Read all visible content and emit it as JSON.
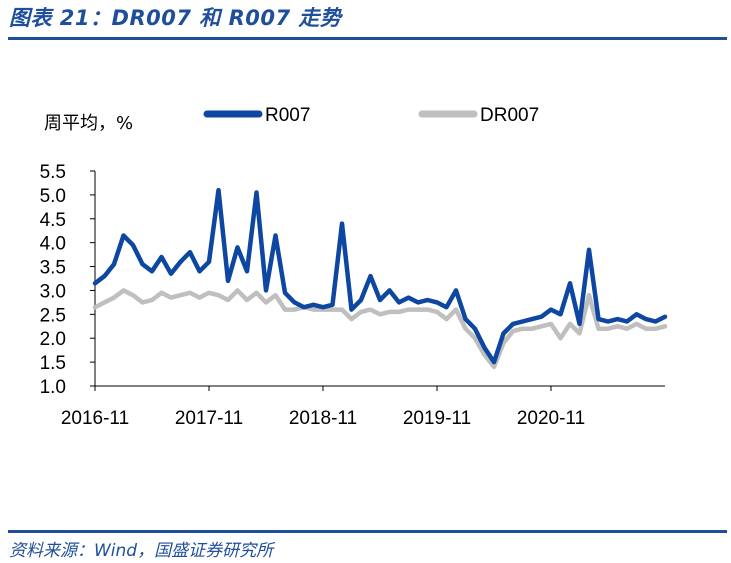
{
  "figure": {
    "title": "图表 21：DR007 和 R007 走势",
    "source": "资料来源：Wind，国盛证券研究所"
  },
  "colors": {
    "r007": "#0d47a1",
    "dr007": "#bfbfbf",
    "accent": "#1f4f9c"
  },
  "chart_data": {
    "type": "line",
    "ylabel": "周平均，%",
    "ylim": [
      1.0,
      5.5
    ],
    "yticks": [
      "1.0",
      "1.5",
      "2.0",
      "2.5",
      "3.0",
      "3.5",
      "4.0",
      "4.5",
      "5.0",
      "5.5"
    ],
    "xlim": [
      "2016-11",
      "2021-11"
    ],
    "xticks": [
      "2016-11",
      "2017-11",
      "2018-11",
      "2019-11",
      "2020-11"
    ],
    "grid": false,
    "legend_position": "top",
    "series": [
      {
        "name": "R007",
        "color": "#0d47a1",
        "points": [
          [
            "2016-11",
            3.15
          ],
          [
            "2016-12",
            3.3
          ],
          [
            "2017-01",
            3.55
          ],
          [
            "2017-02",
            4.15
          ],
          [
            "2017-03",
            3.95
          ],
          [
            "2017-04",
            3.55
          ],
          [
            "2017-05",
            3.4
          ],
          [
            "2017-06",
            3.7
          ],
          [
            "2017-07",
            3.35
          ],
          [
            "2017-08",
            3.6
          ],
          [
            "2017-09",
            3.8
          ],
          [
            "2017-10",
            3.4
          ],
          [
            "2017-11",
            3.6
          ],
          [
            "2017-12",
            5.1
          ],
          [
            "2018-01",
            3.2
          ],
          [
            "2018-02",
            3.9
          ],
          [
            "2018-03",
            3.4
          ],
          [
            "2018-04",
            5.05
          ],
          [
            "2018-05",
            3.0
          ],
          [
            "2018-06",
            4.15
          ],
          [
            "2018-07",
            2.95
          ],
          [
            "2018-08",
            2.75
          ],
          [
            "2018-09",
            2.65
          ],
          [
            "2018-10",
            2.7
          ],
          [
            "2018-11",
            2.65
          ],
          [
            "2018-12",
            2.7
          ],
          [
            "2019-01",
            4.4
          ],
          [
            "2019-02",
            2.6
          ],
          [
            "2019-03",
            2.8
          ],
          [
            "2019-04",
            3.3
          ],
          [
            "2019-05",
            2.8
          ],
          [
            "2019-06",
            3.0
          ],
          [
            "2019-07",
            2.75
          ],
          [
            "2019-08",
            2.85
          ],
          [
            "2019-09",
            2.75
          ],
          [
            "2019-10",
            2.8
          ],
          [
            "2019-11",
            2.75
          ],
          [
            "2019-12",
            2.65
          ],
          [
            "2020-01",
            3.0
          ],
          [
            "2020-02",
            2.4
          ],
          [
            "2020-03",
            2.2
          ],
          [
            "2020-04",
            1.8
          ],
          [
            "2020-05",
            1.5
          ],
          [
            "2020-06",
            2.1
          ],
          [
            "2020-07",
            2.3
          ],
          [
            "2020-08",
            2.35
          ],
          [
            "2020-09",
            2.4
          ],
          [
            "2020-10",
            2.45
          ],
          [
            "2020-11",
            2.6
          ],
          [
            "2020-12",
            2.5
          ],
          [
            "2021-01",
            3.15
          ],
          [
            "2021-02",
            2.3
          ],
          [
            "2021-03",
            3.85
          ],
          [
            "2021-04",
            2.4
          ],
          [
            "2021-05",
            2.35
          ],
          [
            "2021-06",
            2.4
          ],
          [
            "2021-07",
            2.35
          ],
          [
            "2021-08",
            2.5
          ],
          [
            "2021-09",
            2.4
          ],
          [
            "2021-10",
            2.35
          ],
          [
            "2021-11",
            2.45
          ]
        ]
      },
      {
        "name": "DR007",
        "color": "#bfbfbf",
        "points": [
          [
            "2016-11",
            2.65
          ],
          [
            "2016-12",
            2.75
          ],
          [
            "2017-01",
            2.85
          ],
          [
            "2017-02",
            3.0
          ],
          [
            "2017-03",
            2.9
          ],
          [
            "2017-04",
            2.75
          ],
          [
            "2017-05",
            2.8
          ],
          [
            "2017-06",
            2.95
          ],
          [
            "2017-07",
            2.85
          ],
          [
            "2017-08",
            2.9
          ],
          [
            "2017-09",
            2.95
          ],
          [
            "2017-10",
            2.85
          ],
          [
            "2017-11",
            2.95
          ],
          [
            "2017-12",
            2.9
          ],
          [
            "2018-01",
            2.8
          ],
          [
            "2018-02",
            3.0
          ],
          [
            "2018-03",
            2.8
          ],
          [
            "2018-04",
            2.95
          ],
          [
            "2018-05",
            2.75
          ],
          [
            "2018-06",
            2.9
          ],
          [
            "2018-07",
            2.6
          ],
          [
            "2018-08",
            2.6
          ],
          [
            "2018-09",
            2.65
          ],
          [
            "2018-10",
            2.6
          ],
          [
            "2018-11",
            2.6
          ],
          [
            "2018-12",
            2.6
          ],
          [
            "2019-01",
            2.6
          ],
          [
            "2019-02",
            2.4
          ],
          [
            "2019-03",
            2.55
          ],
          [
            "2019-04",
            2.6
          ],
          [
            "2019-05",
            2.5
          ],
          [
            "2019-06",
            2.55
          ],
          [
            "2019-07",
            2.55
          ],
          [
            "2019-08",
            2.6
          ],
          [
            "2019-09",
            2.6
          ],
          [
            "2019-10",
            2.6
          ],
          [
            "2019-11",
            2.55
          ],
          [
            "2019-12",
            2.4
          ],
          [
            "2020-01",
            2.6
          ],
          [
            "2020-02",
            2.2
          ],
          [
            "2020-03",
            2.0
          ],
          [
            "2020-04",
            1.65
          ],
          [
            "2020-05",
            1.4
          ],
          [
            "2020-06",
            1.9
          ],
          [
            "2020-07",
            2.15
          ],
          [
            "2020-08",
            2.2
          ],
          [
            "2020-09",
            2.2
          ],
          [
            "2020-10",
            2.25
          ],
          [
            "2020-11",
            2.3
          ],
          [
            "2020-12",
            2.0
          ],
          [
            "2021-01",
            2.3
          ],
          [
            "2021-02",
            2.1
          ],
          [
            "2021-03",
            2.9
          ],
          [
            "2021-04",
            2.2
          ],
          [
            "2021-05",
            2.2
          ],
          [
            "2021-06",
            2.25
          ],
          [
            "2021-07",
            2.2
          ],
          [
            "2021-08",
            2.3
          ],
          [
            "2021-09",
            2.2
          ],
          [
            "2021-10",
            2.2
          ],
          [
            "2021-11",
            2.25
          ]
        ]
      }
    ]
  }
}
